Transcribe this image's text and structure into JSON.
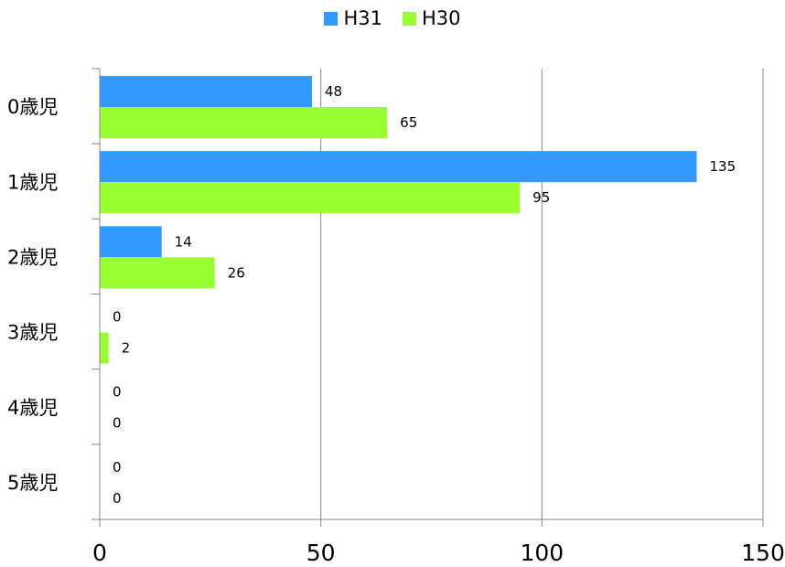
{
  "chart_data": {
    "type": "bar",
    "orientation": "horizontal",
    "categories": [
      "0歳児",
      "1歳児",
      "2歳児",
      "3歳児",
      "4歳児",
      "5歳児"
    ],
    "series": [
      {
        "name": "H31",
        "color": "#3399ff",
        "values": [
          48,
          135,
          14,
          0,
          0,
          0
        ]
      },
      {
        "name": "H30",
        "color": "#99ff33",
        "values": [
          65,
          95,
          26,
          2,
          0,
          0
        ]
      }
    ],
    "xticks": [
      "0",
      "50",
      "100",
      "150"
    ],
    "xlim": [
      0,
      150
    ],
    "grid": true,
    "legend": "top-center",
    "title": "",
    "xlabel": "",
    "ylabel": ""
  }
}
